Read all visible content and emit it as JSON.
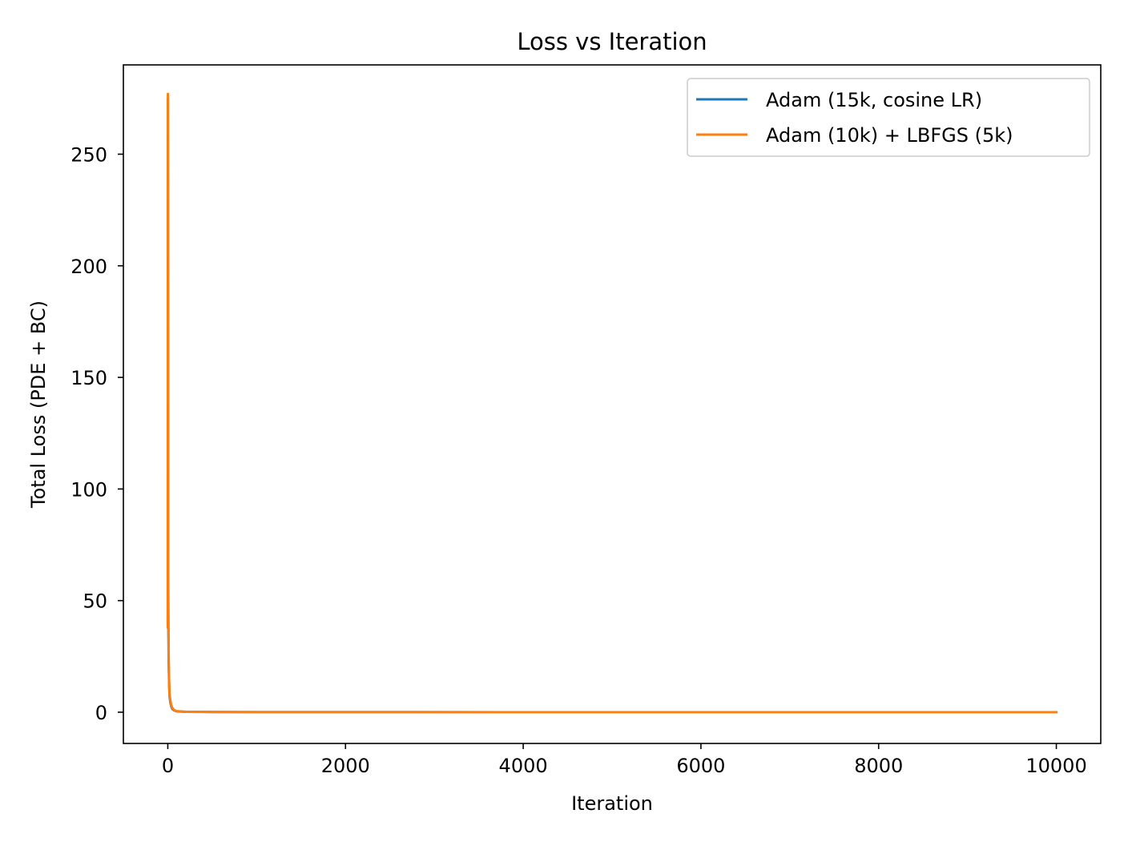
{
  "chart_data": {
    "type": "line",
    "title": "Loss vs Iteration",
    "xlabel": "Iteration",
    "ylabel": "Total Loss (PDE + BC)",
    "xlim": [
      -500,
      10500
    ],
    "ylim": [
      -14,
      290
    ],
    "xticks": [
      0,
      2000,
      4000,
      6000,
      8000,
      10000
    ],
    "yticks": [
      0,
      50,
      100,
      150,
      200,
      250
    ],
    "grid": false,
    "legend_position": "top-right",
    "series": [
      {
        "name": "Adam (15k, cosine LR)",
        "color": "#1f77b4",
        "x": [
          0,
          1,
          2,
          3,
          4,
          5,
          7,
          10,
          15,
          20,
          30,
          40,
          50,
          70,
          100,
          200,
          500,
          1000,
          2000,
          4000,
          6000,
          8000,
          10000
        ],
        "y": [
          40,
          275,
          230,
          150,
          80,
          55,
          35,
          22,
          12,
          7,
          4,
          2.5,
          1.5,
          0.8,
          0.4,
          0.2,
          0.1,
          0.05,
          0.03,
          0.02,
          0.01,
          0.01,
          0.01
        ]
      },
      {
        "name": "Adam (10k) + LBFGS (5k)",
        "color": "#ff7f0e",
        "x": [
          0,
          1,
          2,
          3,
          4,
          5,
          7,
          10,
          15,
          20,
          30,
          40,
          50,
          70,
          100,
          200,
          500,
          1000,
          2000,
          4000,
          6000,
          8000,
          10000
        ],
        "y": [
          38,
          277,
          240,
          160,
          90,
          60,
          40,
          25,
          14,
          8,
          5,
          3,
          2,
          1,
          0.5,
          0.2,
          0.1,
          0.05,
          0.03,
          0.02,
          0.01,
          0.01,
          0.01
        ]
      }
    ]
  }
}
